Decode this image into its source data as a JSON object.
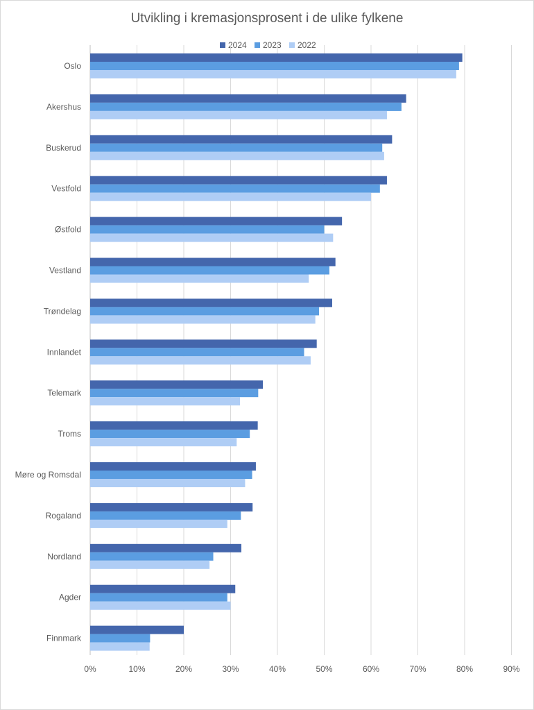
{
  "chart_data": {
    "type": "bar",
    "orientation": "horizontal",
    "title": "Utvikling i kremasjonsprosent  i de ulike fylkene",
    "xlabel": "",
    "ylabel": "",
    "xlim": [
      0,
      0.9
    ],
    "x_ticks": [
      "0%",
      "10%",
      "20%",
      "30%",
      "40%",
      "50%",
      "60%",
      "70%",
      "80%",
      "90%"
    ],
    "grid": "vertical",
    "legend_position": "top",
    "categories": [
      "Oslo",
      "Akershus",
      "Buskerud",
      "Vestfold",
      "Østfold",
      "Vestland",
      "Trøndelag",
      "Innlandet",
      "Telemark",
      "Troms",
      "Møre og Romsdal",
      "Rogaland",
      "Nordland",
      "Agder",
      "Finnmark"
    ],
    "series": [
      {
        "name": "2024",
        "color": "#4466ac",
        "values": [
          0.795,
          0.675,
          0.645,
          0.634,
          0.538,
          0.524,
          0.517,
          0.484,
          0.369,
          0.358,
          0.354,
          0.347,
          0.323,
          0.31,
          0.2
        ]
      },
      {
        "name": "2023",
        "color": "#5b9de1",
        "values": [
          0.788,
          0.665,
          0.624,
          0.619,
          0.5,
          0.511,
          0.489,
          0.457,
          0.359,
          0.341,
          0.346,
          0.322,
          0.263,
          0.293,
          0.128
        ]
      },
      {
        "name": "2022",
        "color": "#afcdf5",
        "values": [
          0.782,
          0.634,
          0.628,
          0.6,
          0.519,
          0.467,
          0.481,
          0.471,
          0.32,
          0.313,
          0.331,
          0.293,
          0.255,
          0.3,
          0.127
        ]
      }
    ]
  }
}
